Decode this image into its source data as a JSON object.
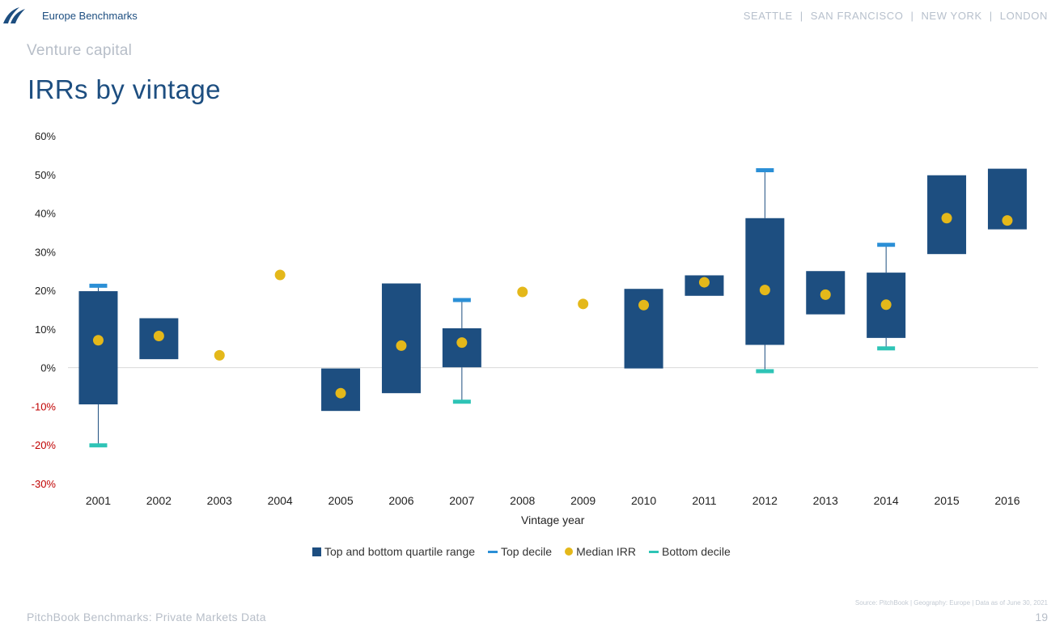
{
  "header": {
    "brand": "Europe Benchmarks",
    "cities": [
      "SEATTLE",
      "SAN FRANCISCO",
      "NEW YORK",
      "LONDON"
    ],
    "city_separator": "|"
  },
  "subtitle": "Venture capital",
  "title": "IRRs by vintage",
  "chart_data": {
    "type": "box",
    "xlabel": "Vintage year",
    "ylim": [
      -30,
      60
    ],
    "yticks": [
      -30,
      -20,
      -10,
      0,
      10,
      20,
      30,
      40,
      50,
      60
    ],
    "ytick_labels": [
      "-30%",
      "-20%",
      "-10%",
      "0%",
      "10%",
      "20%",
      "30%",
      "40%",
      "50%",
      "60%"
    ],
    "categories": [
      "2001",
      "2002",
      "2003",
      "2004",
      "2005",
      "2006",
      "2007",
      "2008",
      "2009",
      "2010",
      "2011",
      "2012",
      "2013",
      "2014",
      "2015",
      "2016"
    ],
    "series": [
      {
        "name": "Top and bottom quartile range",
        "q1": [
          -9.5,
          2.2,
          null,
          null,
          -11.2,
          -6.6,
          0.1,
          null,
          null,
          -0.2,
          18.6,
          5.9,
          13.8,
          7.7,
          29.4,
          35.8
        ],
        "q3": [
          19.8,
          12.8,
          null,
          null,
          -0.2,
          21.8,
          10.2,
          null,
          null,
          20.4,
          23.9,
          38.7,
          25.0,
          24.6,
          49.8,
          51.5
        ]
      },
      {
        "name": "Top decile",
        "values": [
          21.1,
          null,
          null,
          null,
          null,
          null,
          17.4,
          null,
          null,
          null,
          null,
          51.0,
          null,
          31.7,
          null,
          null
        ]
      },
      {
        "name": "Median IRR",
        "values": [
          7.1,
          8.2,
          3.2,
          24.0,
          -6.6,
          5.7,
          6.5,
          19.6,
          16.5,
          16.2,
          22.1,
          20.1,
          18.9,
          16.3,
          38.7,
          38.1
        ]
      },
      {
        "name": "Bottom decile",
        "values": [
          -20.0,
          null,
          null,
          null,
          null,
          null,
          -8.7,
          null,
          null,
          null,
          null,
          -0.8,
          null,
          5.1,
          null,
          null
        ]
      }
    ],
    "colors": {
      "box": "#1d4e80",
      "top_decile": "#2b8fd6",
      "median": "#e4b81a",
      "bottom_decile": "#2ec4b6",
      "negative_tick": "#c00000",
      "tick": "#222222"
    },
    "legend_position": "bottom"
  },
  "source": "Source: PitchBook | Geography: Europe | Data as of June 30, 2021",
  "footer": "PitchBook Benchmarks: Private Markets Data",
  "page_number": "19"
}
